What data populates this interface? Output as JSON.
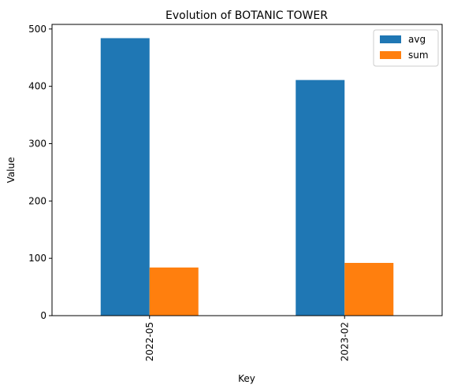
{
  "chart_data": {
    "type": "bar",
    "title": "Evolution of BOTANIC TOWER",
    "xlabel": "Key",
    "ylabel": "Value",
    "categories": [
      "2022-05",
      "2023-02"
    ],
    "series": [
      {
        "name": "avg",
        "values": [
          484,
          411
        ],
        "color": "#1f77b4"
      },
      {
        "name": "sum",
        "values": [
          84,
          92
        ],
        "color": "#ff7f0e"
      }
    ],
    "ylim": [
      0,
      508
    ],
    "yticks": [
      0,
      100,
      200,
      300,
      400,
      500
    ],
    "grid": false,
    "legend_position": "top-right"
  }
}
